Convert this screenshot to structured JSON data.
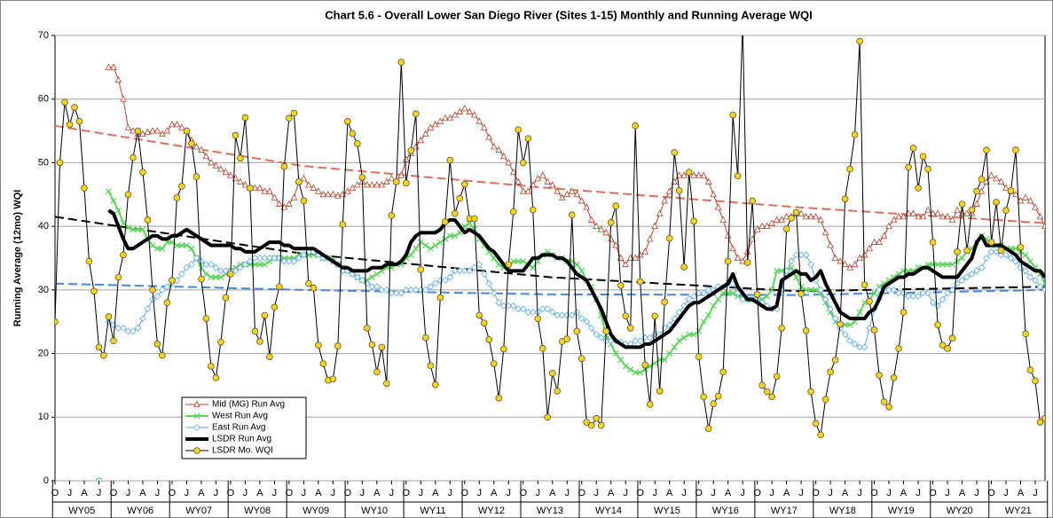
{
  "chart_data": {
    "type": "line",
    "title": "Chart 5.6 - Overall Lower San Diego River (Sites 1-15) Monthly and Running Average WQI",
    "y_label": "Running Average (12mo) WQI",
    "ylim": [
      0,
      70
    ],
    "yticks": [
      0,
      10,
      20,
      30,
      40,
      50,
      60,
      70
    ],
    "grid": true,
    "legend": "lower left",
    "categories": [
      "O",
      null,
      null,
      "J",
      null,
      null,
      "A",
      null,
      null,
      "J",
      null,
      null,
      "O",
      null,
      null,
      "J",
      null,
      null,
      "A",
      null,
      null,
      "J",
      null,
      null,
      "O",
      null,
      null,
      "J",
      null,
      null,
      "A",
      null,
      null,
      "J",
      null,
      null,
      "O",
      null,
      null,
      "J",
      null,
      null,
      "A",
      null,
      null,
      "J",
      null,
      null,
      "O",
      null,
      null,
      "J",
      null,
      null,
      "A",
      null,
      null,
      "J",
      null,
      null,
      "O",
      null,
      null,
      "J",
      null,
      null,
      "A",
      null,
      null,
      "J",
      null,
      null,
      "O",
      null,
      null,
      "J",
      null,
      null,
      "A",
      null,
      null,
      "J",
      null,
      null,
      "O",
      null,
      null,
      "J",
      null,
      null,
      "A",
      null,
      null,
      "J",
      null,
      null,
      "O",
      null,
      null,
      "J",
      null,
      null,
      "A",
      null,
      null,
      "J",
      null,
      null,
      "O",
      null,
      null,
      "J",
      null,
      null,
      "A",
      null,
      null,
      "J",
      null,
      null,
      "O",
      null,
      null,
      "J",
      null,
      null,
      "A",
      null,
      null,
      "J",
      null,
      null,
      "O",
      null,
      null,
      "J",
      null,
      null,
      "A",
      null,
      null,
      "J",
      null,
      null,
      "O",
      null,
      null,
      "J",
      null,
      null,
      "A",
      null,
      null,
      "J",
      null,
      null,
      "O",
      null,
      null,
      "J",
      null,
      null,
      "A",
      null,
      null,
      "J",
      null,
      null,
      "O",
      null,
      null,
      "J",
      null,
      null,
      "A",
      null,
      null,
      "J",
      null,
      null,
      "O",
      null,
      null,
      "J",
      null,
      null,
      "A",
      null,
      null,
      "J",
      null,
      null,
      "O",
      null,
      null,
      "J",
      null,
      null,
      "A",
      null,
      null,
      "J",
      null,
      null
    ],
    "groups": [
      "WY05",
      "WY06",
      "WY07",
      "WY08",
      "WY09",
      "WY10",
      "WY11",
      "WY12",
      "WY13",
      "WY14",
      "WY15",
      "WY16",
      "WY17",
      "WY18",
      "WY19",
      "WY20",
      "WY21"
    ],
    "trendlines": [
      {
        "color": "#d9705f",
        "values": [
          55.8,
          49.5,
          46,
          43,
          40.5
        ]
      },
      {
        "color": "#000000",
        "values": [
          41.5,
          35.7,
          32,
          29.8,
          30.5
        ]
      },
      {
        "color": "#4a86d8",
        "values": [
          31,
          30,
          29.3,
          29.2,
          30
        ]
      }
    ],
    "series": [
      {
        "name": "Mid (MG) Run Avg",
        "color": "#b5442c",
        "marker": "triangle",
        "line_width": 1,
        "values": [
          null,
          null,
          null,
          null,
          null,
          null,
          null,
          null,
          null,
          null,
          null,
          65,
          65,
          63,
          60,
          55.5,
          55,
          54.5,
          54.5,
          54.8,
          55,
          55,
          54.5,
          55,
          56,
          56,
          55.5,
          55,
          53.5,
          52.5,
          52,
          51,
          50,
          49.5,
          49,
          48.5,
          48,
          47.5,
          47,
          46.5,
          46,
          46,
          46,
          45.5,
          45.5,
          44.5,
          43.5,
          43,
          43.5,
          44.5,
          47,
          47.5,
          46.5,
          46,
          45.5,
          45,
          45,
          45,
          44.8,
          45,
          45.5,
          46,
          46.5,
          47,
          46.5,
          46.5,
          46.5,
          46.5,
          47,
          47.5,
          47,
          48,
          50.5,
          51.5,
          52.5,
          53.5,
          54.5,
          55.5,
          56,
          56.5,
          57,
          57,
          57.5,
          58,
          58.5,
          58,
          57.5,
          56.5,
          55.5,
          54,
          52.5,
          52,
          51,
          50,
          48.5,
          47,
          45.5,
          45.5,
          46.5,
          47.5,
          48,
          47,
          46.5,
          45.5,
          44.5,
          45,
          45.5,
          45,
          44,
          43,
          41,
          40,
          39.5,
          39,
          38,
          37,
          35,
          34,
          35,
          35,
          35.5,
          36,
          38,
          40,
          42,
          44,
          45.5,
          47,
          48,
          48,
          48.5,
          48,
          48,
          48,
          47,
          45,
          43,
          41,
          38.5,
          36.5,
          35,
          34.5,
          36,
          38,
          39.5,
          40,
          40,
          40.5,
          41,
          41,
          41.5,
          41.5,
          42,
          42,
          41.5,
          41.5,
          41.5,
          41,
          39,
          37,
          35,
          34.5,
          34,
          33.5,
          34,
          35,
          35.5,
          36.5,
          37.5,
          37.5,
          38.5,
          40,
          41,
          41.5,
          41.5,
          42,
          42,
          41.5,
          41.5,
          42.5,
          42,
          42,
          41.5,
          41.5,
          41,
          42.5,
          42,
          42,
          42,
          43.5,
          45.5,
          47,
          48,
          47.5,
          47,
          46,
          45.5,
          45,
          44,
          44.5,
          44,
          43,
          41.5,
          40
        ]
      },
      {
        "name": "West Run Avg",
        "color": "#5fd35f",
        "marker": "x",
        "line_width": 2,
        "values": [
          null,
          null,
          null,
          null,
          null,
          null,
          null,
          null,
          null,
          0,
          null,
          45.5,
          44,
          42.5,
          40.5,
          39.8,
          39.5,
          39.5,
          39.5,
          38,
          37,
          36.5,
          36.5,
          37.5,
          37.5,
          37,
          37,
          37,
          36.5,
          35,
          33.5,
          32.5,
          32,
          32,
          32,
          32.5,
          33,
          33.5,
          34,
          34,
          34,
          34,
          34,
          34,
          34.5,
          35,
          35,
          35,
          35,
          35,
          35.5,
          35.5,
          35.5,
          35.5,
          35.5,
          35,
          35,
          34.5,
          34,
          33.5,
          33,
          32.5,
          32,
          31.5,
          31.5,
          32,
          32.5,
          33,
          33.5,
          33.5,
          34,
          34,
          35,
          35.5,
          36.5,
          37.5,
          37,
          36.5,
          37,
          37.5,
          38,
          38.5,
          38.5,
          39,
          40,
          40.5,
          39.5,
          38,
          37,
          36,
          35,
          34,
          33.5,
          33.5,
          34.5,
          34.5,
          34.5,
          34,
          33.5,
          34.5,
          35.5,
          36,
          35.5,
          35,
          35,
          34.5,
          34.5,
          34,
          33,
          31.5,
          30.5,
          28.5,
          26,
          23,
          21.5,
          20,
          19,
          18,
          17.5,
          17,
          17,
          17.5,
          18,
          18.5,
          19,
          19,
          20,
          21,
          22,
          22.5,
          23,
          23,
          23.5,
          25,
          26,
          27.5,
          28.5,
          29.5,
          29.5,
          29.5,
          29,
          29,
          28.5,
          28.5,
          28.5,
          28.5,
          29,
          30,
          33,
          33,
          33,
          33.5,
          32,
          30.5,
          30,
          30,
          30,
          29.5,
          28,
          26.5,
          25,
          24.5,
          24.5,
          24.5,
          25,
          26.5,
          28,
          28.5,
          29.5,
          30.5,
          31,
          31.5,
          32,
          32.5,
          33,
          33,
          33,
          33.5,
          33.5,
          34,
          34,
          34,
          34,
          34,
          34,
          34.5,
          35,
          36,
          36.5,
          37.5,
          38.5,
          38,
          37,
          37,
          37,
          36.5,
          36.5,
          36.5,
          36,
          35.5,
          34.5,
          33.5,
          32.5,
          31
        ]
      },
      {
        "name": "East Run Avg",
        "color": "#5aaae6",
        "marker": "diamond",
        "line_width": 1,
        "values": [
          null,
          null,
          null,
          null,
          null,
          null,
          null,
          null,
          null,
          0,
          null,
          25,
          24.5,
          24,
          24,
          23.5,
          23.5,
          24,
          25.5,
          27,
          28.5,
          29,
          30,
          30.5,
          31,
          31.5,
          32.5,
          33.5,
          34,
          35,
          34.5,
          34,
          34,
          33.5,
          33,
          33,
          33,
          33,
          33.5,
          34,
          34.5,
          35,
          35,
          35,
          35,
          35,
          35,
          34.5,
          34.5,
          34.5,
          35,
          35.5,
          36,
          36,
          35.5,
          35,
          35,
          34.5,
          34,
          33,
          33,
          32.5,
          32,
          31.5,
          31,
          30.5,
          30.5,
          30,
          30,
          29.5,
          29.5,
          29.5,
          30,
          30,
          30,
          30,
          30,
          30.5,
          31,
          31.5,
          31.5,
          32,
          33,
          33,
          33,
          33,
          33.5,
          34,
          32.5,
          31,
          29.5,
          28,
          27.5,
          27.5,
          27.5,
          27,
          27,
          26.5,
          26.5,
          26.5,
          27,
          27,
          26.5,
          26,
          26,
          26,
          26,
          26.5,
          25.5,
          25,
          24,
          23,
          22.5,
          22,
          22,
          22,
          21.8,
          21.5,
          21.5,
          22,
          22,
          22.5,
          22.5,
          23,
          23,
          24,
          24.5,
          25.5,
          26.5,
          27.5,
          28.5,
          29,
          29.5,
          29.5,
          30,
          30,
          30.5,
          30.5,
          31,
          31,
          29.5,
          28.5,
          28.5,
          28.5,
          28.5,
          28,
          27.5,
          27,
          27,
          30,
          33,
          34.5,
          35.5,
          35.5,
          35.5,
          34,
          31.5,
          30,
          28.5,
          27,
          25.5,
          24,
          23,
          22,
          21.5,
          21,
          21,
          24,
          27,
          30,
          30.5,
          30,
          30,
          29.5,
          29.5,
          29,
          29,
          29,
          29.5,
          29.5,
          28,
          27.5,
          28.5,
          29.5,
          30,
          31,
          31.5,
          32,
          32.5,
          33,
          33.5,
          35,
          36,
          36,
          35.5,
          35.5,
          35,
          34.5,
          33.5,
          33,
          32,
          31.5,
          30.5,
          30
        ]
      },
      {
        "name": "LSDR Run Avg",
        "color": "#000000",
        "marker": "none",
        "line_width": 4,
        "values": [
          null,
          null,
          null,
          null,
          null,
          null,
          null,
          null,
          null,
          null,
          null,
          42.5,
          42,
          40,
          38,
          36.5,
          36.5,
          37,
          37.5,
          38,
          38.5,
          38.5,
          38,
          38,
          38.5,
          38.5,
          39,
          39.5,
          39,
          38.5,
          38,
          37.5,
          37,
          37,
          37,
          37,
          37,
          36.5,
          36.5,
          36,
          36,
          36,
          36.5,
          37,
          37.5,
          37.5,
          37.5,
          37,
          37,
          36.5,
          36.5,
          36.5,
          36.5,
          36.5,
          36,
          35.5,
          35,
          34.5,
          34,
          33.5,
          33.5,
          33,
          33,
          33,
          33,
          33.5,
          33.5,
          33.5,
          34,
          34,
          34,
          34.5,
          35.5,
          37.5,
          38.5,
          39,
          39,
          39,
          39,
          39.5,
          40.5,
          41,
          41,
          40,
          39,
          39.5,
          39,
          38.5,
          37.5,
          36.5,
          36,
          35,
          34,
          33,
          33,
          33,
          33,
          34,
          35,
          35,
          35.5,
          35.5,
          35.5,
          35,
          35,
          34.5,
          33.5,
          32.5,
          32,
          31.5,
          30,
          28.5,
          27,
          25,
          23,
          22,
          21.5,
          21,
          21,
          21,
          21,
          21.5,
          21.5,
          22,
          22.5,
          23,
          23.5,
          24.5,
          25.5,
          26.5,
          27.5,
          28,
          28,
          28.5,
          29,
          29.5,
          30,
          30.5,
          31,
          32.5,
          30.5,
          29.5,
          28.5,
          28.5,
          28,
          27.5,
          27,
          27,
          27.5,
          31.5,
          32,
          32.5,
          33,
          32.5,
          32.5,
          31.5,
          32,
          33,
          31,
          29.5,
          28,
          26.5,
          26,
          25.5,
          25.5,
          25.5,
          25.5,
          26.5,
          27,
          28.5,
          30.5,
          31,
          31.5,
          32,
          32,
          32.5,
          32.5,
          33,
          33.5,
          33.5,
          33,
          32.5,
          32,
          32,
          32,
          32,
          33,
          34,
          35,
          37.5,
          38.5,
          37,
          37,
          37,
          37,
          36.5,
          36,
          35.5,
          34.5,
          34,
          33.5,
          33,
          33,
          32
        ]
      },
      {
        "name": "LSDR Mo. WQI",
        "color": "#000000",
        "marker": "circle",
        "marker_fill": "#ffd700",
        "line_width": 1,
        "values": [
          25,
          50,
          59.5,
          56,
          58.7,
          56.5,
          46,
          34.5,
          29.8,
          21,
          19.7,
          25.8,
          22,
          32,
          35.5,
          45,
          50.8,
          55,
          48.5,
          41,
          30,
          21.5,
          19.7,
          28,
          31.5,
          44.5,
          46.3,
          55,
          53,
          47.8,
          31.7,
          25.5,
          18,
          16.2,
          21.8,
          28.8,
          32.5,
          54.3,
          50.7,
          57.1,
          46,
          23.5,
          21.9,
          26,
          19.5,
          27.3,
          30.5,
          49.4,
          57,
          57.8,
          47,
          44,
          31,
          30.3,
          21.3,
          18.4,
          15.8,
          16,
          21.2,
          40.3,
          56.5,
          54.6,
          53,
          47.7,
          24,
          21.4,
          17.1,
          21,
          15.3,
          41.7,
          47,
          65.8,
          46.8,
          51.9,
          57.7,
          33.2,
          22.5,
          18.1,
          15.1,
          28.8,
          40.7,
          50.4,
          42,
          44.4,
          46.6,
          41.2,
          41.2,
          26,
          24.8,
          22.2,
          18.4,
          13,
          20.7,
          34,
          42.3,
          55.2,
          50,
          53.8,
          42.6,
          25.5,
          20.8,
          10,
          16.9,
          14.1,
          21.9,
          22.3,
          41.8,
          23.5,
          19.2,
          9.2,
          8.7,
          9.8,
          8.7,
          23.5,
          40.6,
          43.2,
          30.7,
          25.9,
          24,
          55.8,
          31.3,
          18.2,
          12,
          25.9,
          14.1,
          28.1,
          38.1,
          51.6,
          45.6,
          33.6,
          48.5,
          40.8,
          19.5,
          13.2,
          8.2,
          12.1,
          13.3,
          17.1,
          34.5,
          57.5,
          47.9,
          72,
          34.3,
          44,
          29.3,
          15,
          14,
          13.2,
          16.4,
          24,
          39.6,
          41.3,
          42.2,
          29.4,
          23.6,
          14,
          9,
          7.2,
          12.8,
          17.1,
          19,
          24.6,
          44.3,
          49,
          54.4,
          69.1,
          30.8,
          28.2,
          23.7,
          16.6,
          12.4,
          11.6,
          16.2,
          20.8,
          26.5,
          49.3,
          52.3,
          46,
          51,
          49,
          37.5,
          24.5,
          21.3,
          20.8,
          22.4,
          36,
          43.5,
          36.2,
          42.6,
          45.5,
          47.4,
          52,
          37.5,
          43.8,
          36.2,
          42.5,
          45.6,
          52,
          36.7,
          23.1,
          17.4,
          15.7,
          9.2,
          9.8
        ]
      }
    ]
  }
}
